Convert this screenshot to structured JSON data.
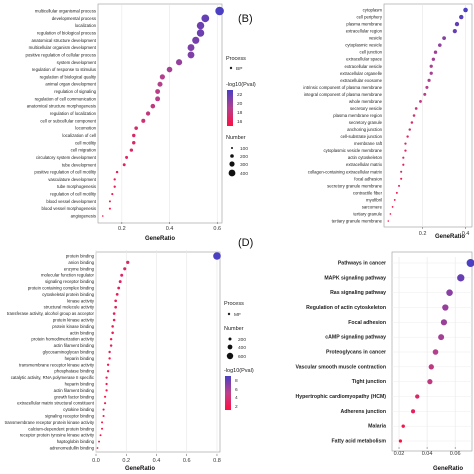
{
  "chart_data": [
    {
      "type": "scatter",
      "panel_label": "",
      "xlabel": "GeneRatio",
      "xticks": [
        0.2,
        0.4,
        0.6
      ],
      "xlim": [
        0.1,
        0.62
      ],
      "terms": [
        "multicellular organismal process",
        "developmental process",
        "localization",
        "regulation of biological process",
        "anatomical structure development",
        "multicellular organism development",
        "positive regulation of cellular process",
        "system development",
        "regulation of response to stimulus",
        "regulation of biological quality",
        "animal organ development",
        "regulation of signaling",
        "regulation of cell communication",
        "anatomical structure morphogenesis",
        "regulation of localization",
        "cell or subcellular component",
        "locomotion",
        "localization of cell",
        "cell motility",
        "cell migration",
        "circulatory system development",
        "tube development",
        "positive regulation of cell motility",
        "vasculature development",
        "tube morphogenesis",
        "regulation of cell motility",
        "blood vessel development",
        "blood vessel morphogenesis",
        "angiogenesis"
      ],
      "values": [
        0.61,
        0.55,
        0.53,
        0.53,
        0.51,
        0.49,
        0.49,
        0.44,
        0.4,
        0.37,
        0.36,
        0.35,
        0.35,
        0.33,
        0.31,
        0.29,
        0.26,
        0.25,
        0.25,
        0.24,
        0.22,
        0.21,
        0.18,
        0.17,
        0.17,
        0.16,
        0.15,
        0.15,
        0.12
      ],
      "legend": {
        "process_title": "Process",
        "process_item": "BP",
        "color_title": "-log10(Pval)",
        "color_ticks": [
          "22",
          "20",
          "18",
          "16"
        ],
        "size_title": "Number",
        "size_ticks": [
          "100",
          "200",
          "300",
          "400"
        ]
      }
    },
    {
      "type": "scatter",
      "panel_label": "(B)",
      "xlabel": "GeneRatio",
      "xticks": [
        0.2,
        0.4
      ],
      "xlim": [
        0.02,
        0.43
      ],
      "terms": [
        "cytoplasm",
        "cell periphery",
        "plasma membrane",
        "extracellular region",
        "vesicle",
        "cytoplasmic vesicle",
        "cell junction",
        "extracellular space",
        "extracellular vesicle",
        "extracellular organelle",
        "extracellular exosome",
        "intrinsic component of plasma membrane",
        "integral component of plasma membrane",
        "whole membrane",
        "secretory vesicle",
        "plasma membrane region",
        "secretory granule",
        "anchoring junction",
        "cell-substrate junction",
        "membrane raft",
        "cytoplasmic vesicle membrane",
        "actin cytoskeleton",
        "extracellular matrix",
        "collagen-containing extracellular matrix",
        "focal adhesion",
        "secretory granule membrane",
        "contractile fiber",
        "myofibril",
        "sarcomere",
        "tertiary granule",
        "tertiary granule membrane"
      ],
      "values": [
        0.4,
        0.38,
        0.36,
        0.35,
        0.3,
        0.28,
        0.26,
        0.25,
        0.24,
        0.24,
        0.23,
        0.22,
        0.21,
        0.19,
        0.17,
        0.16,
        0.15,
        0.14,
        0.13,
        0.12,
        0.12,
        0.11,
        0.11,
        0.1,
        0.1,
        0.09,
        0.08,
        0.07,
        0.06,
        0.05,
        0.04
      ]
    },
    {
      "type": "scatter",
      "panel_label": "",
      "xlabel": "GeneRatio",
      "xticks": [
        0.0,
        0.2,
        0.4,
        0.6,
        0.8
      ],
      "xlim": [
        0.0,
        0.82
      ],
      "terms": [
        "protein binding",
        "anion binding",
        "enzyme binding",
        "molecular function regulator",
        "signaling receptor binding",
        "protein containing complex binding",
        "cytoskeletal protein binding",
        "kinase activity",
        "structural molecule activity",
        "transferase activity, alcohol group as acceptor",
        "protein kinase activity",
        "protein kinase binding",
        "actin binding",
        "protein homodimerization activity",
        "actin filament binding",
        "glycosaminoglycan binding",
        "heparin binding",
        "transmembrane receptor kinase activity",
        "phosphatase binding",
        "catalytic activity, RNA polymerase II specific",
        "heparin binding",
        "actin filament binding",
        "growth factor binding",
        "extracellular matrix structural constituent",
        "cytokine binding",
        "signaling receptor binding",
        "transmembrane receptor protein kinase activity",
        "calcium-dependent protein binding",
        "receptor protein tyrosine kinase activity",
        "haptoglobin binding",
        "adrenomedullin binding"
      ],
      "values": [
        0.8,
        0.21,
        0.19,
        0.17,
        0.16,
        0.15,
        0.14,
        0.13,
        0.13,
        0.12,
        0.12,
        0.11,
        0.11,
        0.1,
        0.1,
        0.09,
        0.09,
        0.08,
        0.08,
        0.07,
        0.07,
        0.07,
        0.06,
        0.06,
        0.05,
        0.05,
        0.04,
        0.04,
        0.03,
        0.02,
        0.01
      ],
      "legend": {
        "process_title": "Process",
        "process_item": "MF",
        "size_title": "Number",
        "size_ticks": [
          "200",
          "400",
          "600"
        ],
        "color_title": "-log10(Pval)",
        "color_ticks": [
          "8",
          "6",
          "4",
          "2"
        ]
      }
    },
    {
      "type": "scatter",
      "panel_label": "(D)",
      "xlabel": "GeneRatio",
      "xticks": [
        0.02,
        0.04,
        0.06
      ],
      "xlim": [
        0.015,
        0.072
      ],
      "terms": [
        "Pathways in cancer",
        "MAPK signaling pathway",
        "Ras signaling pathway",
        "Regulation of actin cytoskeleton",
        "Focal adhesion",
        "cAMP signaling pathway",
        "Proteoglycans in cancer",
        "Vascular smooth muscle contraction",
        "Tight junction",
        "Hypertrophic cardiomyopathy (HCM)",
        "Adherens junction",
        "Malaria",
        "Fatty acid metabolism"
      ],
      "values": [
        0.071,
        0.064,
        0.056,
        0.053,
        0.052,
        0.05,
        0.046,
        0.043,
        0.042,
        0.033,
        0.03,
        0.023,
        0.021
      ]
    }
  ]
}
